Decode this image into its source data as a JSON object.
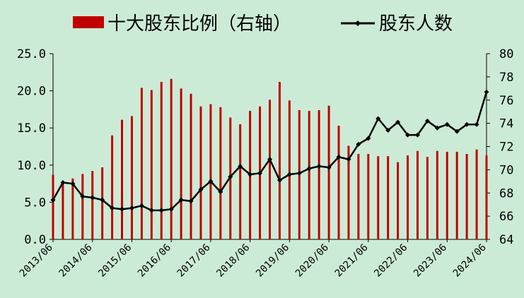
{
  "chart_data": {
    "type": "bar+line",
    "legend": {
      "placement": "top",
      "bar_label": "十大股东比例（右轴）",
      "line_label": "股东人数"
    },
    "colors": {
      "bar": "#c00000",
      "line": "#000000",
      "background": "#ccebd6"
    },
    "grid": false,
    "y_left": {
      "range": [
        0,
        25
      ],
      "ticks": [
        "25.0",
        "20.0",
        "15.0",
        "10.0",
        "5.0",
        "0.0"
      ]
    },
    "y_right": {
      "range": [
        64,
        80
      ],
      "ticks": [
        "80",
        "78",
        "76",
        "74",
        "72",
        "70",
        "68",
        "66",
        "64"
      ]
    },
    "x_tick_labels": [
      "2013/06",
      "2014/06",
      "2015/06",
      "2016/06",
      "2017/06",
      "2018/06",
      "2019/06",
      "2020/06",
      "2021/06",
      "2022/06",
      "2023/06",
      "2024/06"
    ],
    "series": [
      {
        "name": "十大股东比例（右轴）",
        "type": "bar",
        "values": [
          8.7,
          7.8,
          8.2,
          8.8,
          9.2,
          9.7,
          14.0,
          16.1,
          16.6,
          20.4,
          20.1,
          21.2,
          21.6,
          20.3,
          19.6,
          17.9,
          18.2,
          17.8,
          16.4,
          15.5,
          17.3,
          17.9,
          18.8,
          21.2,
          18.7,
          17.4,
          17.3,
          17.4,
          18.0,
          15.3,
          12.6,
          11.5,
          11.5,
          11.2,
          11.2,
          10.4,
          11.3,
          11.9,
          11.1,
          11.9,
          11.8,
          11.8,
          11.5,
          12.1,
          11.3
        ]
      },
      {
        "name": "股东人数",
        "type": "line",
        "values": [
          67.4,
          68.9,
          68.8,
          67.7,
          67.6,
          67.4,
          66.7,
          66.6,
          66.7,
          66.9,
          66.5,
          66.5,
          66.6,
          67.4,
          67.3,
          68.3,
          69.0,
          68.1,
          69.4,
          70.3,
          69.6,
          69.7,
          70.9,
          69.1,
          69.6,
          69.7,
          70.1,
          70.3,
          70.2,
          71.1,
          70.9,
          72.2,
          72.7,
          74.4,
          73.4,
          74.1,
          73.0,
          73.0,
          74.2,
          73.6,
          73.9,
          73.3,
          73.9,
          73.9,
          76.7
        ]
      }
    ]
  }
}
